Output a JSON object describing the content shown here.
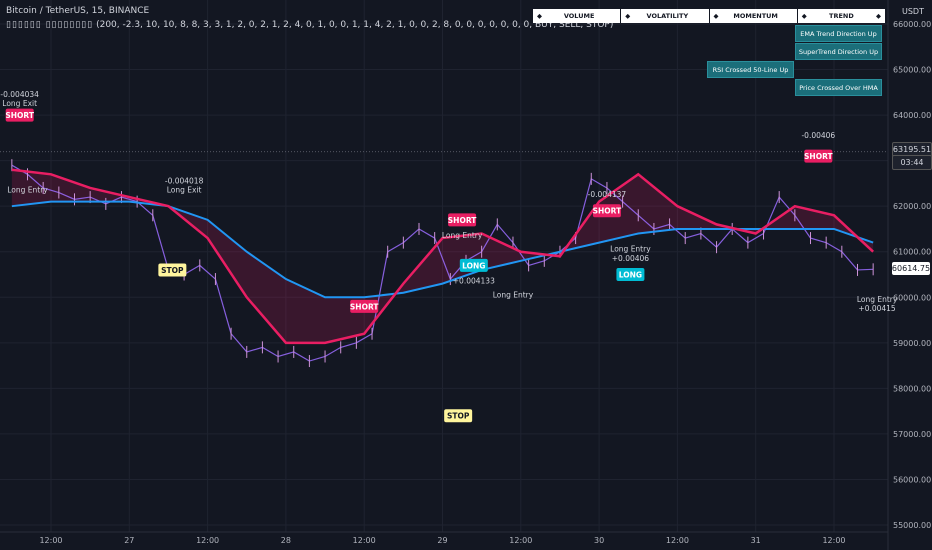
{
  "header": {
    "title": "Bitcoin / TetherUS, 15, BINANCE",
    "indicator_glyphs": "▯▯▯▯▯▯ ▯▯▯▯▯▯▯▯",
    "indicator_params": "(200, -2.3, 10, 10, 8, 8, 3, 3, 1, 2, 0, 2, 1, 2, 4, 0, 1, 0, 0, 1, 1, 4, 2, 1, 0, 0, 2, 8, 0, 0, 0, 0, 0, 0, 0, BUY, SELL, STOP)"
  },
  "table": {
    "columns": [
      "VOLUME",
      "VOLATILITY",
      "MOMENTUM",
      "TREND"
    ],
    "arrow": "◆",
    "buttons": [
      "EMA Trend Direction Up",
      "SuperTrend Direction Up",
      "RSI Crossed 50-Line Up",
      "Price Crossed Over HMA"
    ]
  },
  "price_labels": {
    "current": "60614.75",
    "high_line": "63195.51",
    "countdown": "03:44",
    "currency": "USDT"
  },
  "chart_data": {
    "type": "line",
    "title": "Bitcoin / TetherUS, 15, BINANCE",
    "xlabel": "",
    "ylabel": "",
    "ylim": [
      55000,
      66000
    ],
    "grid": true,
    "y_ticks": [
      55000,
      56000,
      57000,
      58000,
      59000,
      60000,
      61000,
      62000,
      63000,
      64000,
      65000,
      66000
    ],
    "y_tick_labels": [
      "55000.00",
      "56000.00",
      "57000.00",
      "58000.00",
      "59000.00",
      "60000.00",
      "61000.00",
      "62000.00",
      "63000.00",
      "64000.00",
      "65000.00",
      "66000.00"
    ],
    "x_ticks": [
      0,
      1,
      2,
      3,
      4,
      5,
      6,
      7,
      8,
      9,
      10
    ],
    "x_tick_labels": [
      "12:00",
      "27",
      "12:00",
      "28",
      "12:00",
      "29",
      "12:00",
      "30",
      "12:00",
      "31",
      "12:00"
    ],
    "x_range": [
      -0.5,
      10.6
    ],
    "series": [
      {
        "role": "price",
        "color": "#9b6cff",
        "x": [
          -0.5,
          -0.3,
          -0.1,
          0.1,
          0.3,
          0.5,
          0.7,
          0.9,
          1.1,
          1.3,
          1.5,
          1.7,
          1.9,
          2.1,
          2.3,
          2.5,
          2.7,
          2.9,
          3.1,
          3.3,
          3.5,
          3.7,
          3.9,
          4.1,
          4.3,
          4.5,
          4.7,
          4.9,
          5.1,
          5.3,
          5.5,
          5.7,
          5.9,
          6.1,
          6.3,
          6.5,
          6.7,
          6.9,
          7.1,
          7.3,
          7.5,
          7.7,
          7.9,
          8.1,
          8.3,
          8.5,
          8.7,
          8.9,
          9.1,
          9.3,
          9.5,
          9.7,
          9.9,
          10.1,
          10.3,
          10.5
        ],
        "y": [
          62900,
          62700,
          62400,
          62300,
          62150,
          62200,
          62050,
          62200,
          62100,
          61800,
          60600,
          60500,
          60700,
          60400,
          59200,
          58800,
          58900,
          58700,
          58800,
          58600,
          58700,
          58900,
          59000,
          59200,
          61000,
          61200,
          61500,
          61300,
          60400,
          60800,
          61000,
          61600,
          61200,
          60700,
          60800,
          61000,
          61300,
          62600,
          62400,
          62100,
          61800,
          61500,
          61600,
          61300,
          61400,
          61100,
          61500,
          61200,
          61400,
          62200,
          61800,
          61300,
          61200,
          61000,
          60600,
          60614
        ]
      },
      {
        "role": "fast-ma",
        "color": "#e91e63",
        "x": [
          -0.5,
          0.0,
          0.5,
          1.0,
          1.5,
          2.0,
          2.5,
          3.0,
          3.5,
          4.0,
          4.5,
          5.0,
          5.5,
          6.0,
          6.5,
          7.0,
          7.5,
          8.0,
          8.5,
          9.0,
          9.5,
          10.0,
          10.5
        ],
        "y": [
          62800,
          62700,
          62400,
          62200,
          62000,
          61300,
          60000,
          59000,
          59000,
          59200,
          60300,
          61300,
          61400,
          61000,
          60900,
          62100,
          62700,
          62000,
          61600,
          61400,
          62000,
          61800,
          61000
        ]
      },
      {
        "role": "slow-ma",
        "color": "#2196f3",
        "x": [
          -0.5,
          0.0,
          0.5,
          1.0,
          1.5,
          2.0,
          2.5,
          3.0,
          3.5,
          4.0,
          4.5,
          5.0,
          5.5,
          6.0,
          6.5,
          7.0,
          7.5,
          8.0,
          8.5,
          9.0,
          9.5,
          10.0,
          10.5
        ],
        "y": [
          62000,
          62100,
          62100,
          62100,
          62000,
          61700,
          61000,
          60400,
          60000,
          60000,
          60100,
          60300,
          60600,
          60800,
          61000,
          61200,
          61400,
          61500,
          61500,
          61500,
          61500,
          61500,
          61200
        ]
      }
    ],
    "annotations": [
      {
        "text": "SHORT",
        "kind": "short",
        "x": -0.4,
        "y": 64000
      },
      {
        "text": "-0.004034",
        "kind": "note",
        "x": -0.4,
        "y": 64400
      },
      {
        "text": "Long Exit",
        "kind": "note",
        "x": -0.4,
        "y": 64200
      },
      {
        "text": "Long Entry",
        "kind": "note",
        "x": -0.3,
        "y": 62300
      },
      {
        "text": "-0.004018",
        "kind": "note",
        "x": 1.7,
        "y": 62500
      },
      {
        "text": "Long Exit",
        "kind": "note",
        "x": 1.7,
        "y": 62300
      },
      {
        "text": "STOP",
        "kind": "stop",
        "x": 1.55,
        "y": 60600
      },
      {
        "text": "SHORT",
        "kind": "short",
        "x": 4.0,
        "y": 59800
      },
      {
        "text": "STOP",
        "kind": "stop",
        "x": 5.2,
        "y": 57400
      },
      {
        "text": "SHORT",
        "kind": "short",
        "x": 5.25,
        "y": 61700
      },
      {
        "text": "Long Entry",
        "kind": "note",
        "x": 5.25,
        "y": 61300
      },
      {
        "text": "LONG",
        "kind": "long",
        "x": 5.4,
        "y": 60700
      },
      {
        "text": "+0.004133",
        "kind": "note",
        "x": 5.4,
        "y": 60300
      },
      {
        "text": "Long Entry",
        "kind": "note",
        "x": 5.9,
        "y": 60000
      },
      {
        "text": "SHORT",
        "kind": "short",
        "x": 7.1,
        "y": 61900
      },
      {
        "text": "-0.004137",
        "kind": "note",
        "x": 7.1,
        "y": 62200
      },
      {
        "text": "LONG",
        "kind": "long",
        "x": 7.4,
        "y": 60500
      },
      {
        "text": "Long Entry",
        "kind": "note",
        "x": 7.4,
        "y": 61000
      },
      {
        "text": "+0.00406",
        "kind": "note",
        "x": 7.4,
        "y": 60800
      },
      {
        "text": "SHORT",
        "kind": "short",
        "x": 9.8,
        "y": 63100
      },
      {
        "text": "-0.00406",
        "kind": "note",
        "x": 9.8,
        "y": 63500
      },
      {
        "text": "Long Entry",
        "kind": "note",
        "x": 10.55,
        "y": 59900
      },
      {
        "text": "+0.00415",
        "kind": "note",
        "x": 10.55,
        "y": 59700
      }
    ]
  }
}
